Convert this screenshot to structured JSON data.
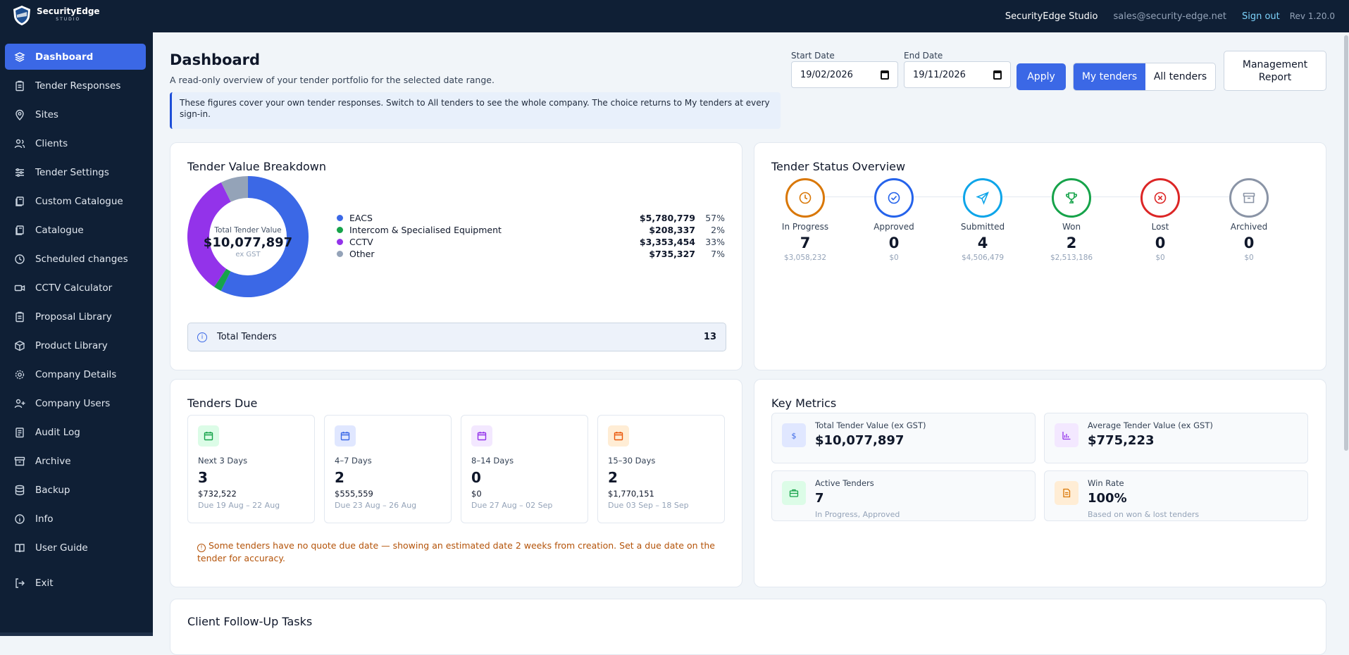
{
  "header": {
    "logo_name": "SecurityEdge",
    "logo_sub": "STUDIO",
    "studio": "SecurityEdge Studio",
    "email": "sales@security-edge.net",
    "signout": "Sign out",
    "rev": "Rev 1.20.0"
  },
  "sidebar": {
    "items": [
      {
        "label": "Dashboard",
        "icon": "layers-icon"
      },
      {
        "label": "Tender Responses",
        "icon": "clipboard-icon"
      },
      {
        "label": "Sites",
        "icon": "map-pin-icon"
      },
      {
        "label": "Clients",
        "icon": "users-icon"
      },
      {
        "label": "Tender Settings",
        "icon": "sliders-icon"
      },
      {
        "label": "Custom Catalogue",
        "icon": "book-copy-icon"
      },
      {
        "label": "Catalogue",
        "icon": "book-copy-icon"
      },
      {
        "label": "Scheduled changes",
        "icon": "clock-icon"
      },
      {
        "label": "CCTV Calculator",
        "icon": "video-icon"
      },
      {
        "label": "Proposal Library",
        "icon": "clipboard-icon"
      },
      {
        "label": "Product Library",
        "icon": "box-icon"
      },
      {
        "label": "Company Details",
        "icon": "gear-icon"
      },
      {
        "label": "Company Users",
        "icon": "user-plus-icon"
      },
      {
        "label": "Audit Log",
        "icon": "clipboard-list-icon"
      },
      {
        "label": "Archive",
        "icon": "archive-icon"
      },
      {
        "label": "Backup",
        "icon": "database-icon"
      },
      {
        "label": "Info",
        "icon": "info-icon"
      },
      {
        "label": "User Guide",
        "icon": "book-open-icon"
      },
      {
        "label": "Exit",
        "icon": "log-out-icon"
      }
    ]
  },
  "page": {
    "title": "Dashboard",
    "subtitle": "A read-only overview of your tender portfolio for the selected date range.",
    "banner": "These figures cover your own tender responses. Switch to All tenders to see the whole company. The choice returns to My tenders at every sign-in."
  },
  "filters": {
    "start_label": "Start Date",
    "start_value": "19/02/2026",
    "end_label": "End Date",
    "end_value": "19/11/2026",
    "apply": "Apply",
    "my_tenders": "My tenders",
    "all_tenders": "All tenders",
    "report": "Management Report"
  },
  "breakdown": {
    "title": "Tender Value Breakdown",
    "center_label": "Total Tender Value",
    "center_value": "$10,077,897",
    "center_note": "ex GST",
    "total_label": "Total Tenders",
    "total_value": "13"
  },
  "chart_data": {
    "type": "pie",
    "title": "Tender Value Breakdown",
    "categories": [
      "EACS",
      "Intercom & Specialised Equipment",
      "CCTV",
      "Other"
    ],
    "values": [
      5780779,
      208337,
      3353454,
      735327
    ],
    "value_labels": [
      "$5,780,779",
      "$208,337",
      "$3,353,454",
      "$735,327"
    ],
    "percent_labels": [
      "57%",
      "2%",
      "33%",
      "7%"
    ],
    "colors": [
      "#3b68e6",
      "#16a34a",
      "#9333ea",
      "#94a3b8"
    ]
  },
  "status": {
    "title": "Tender Status Overview",
    "items": [
      {
        "label": "In Progress",
        "count": "7",
        "amount": "$3,058,232",
        "color": "#d97706",
        "icon": "clock-icon"
      },
      {
        "label": "Approved",
        "count": "0",
        "amount": "$0",
        "color": "#2563eb",
        "icon": "check-circle-icon"
      },
      {
        "label": "Submitted",
        "count": "4",
        "amount": "$4,506,479",
        "color": "#0ea5e9",
        "icon": "send-icon"
      },
      {
        "label": "Won",
        "count": "2",
        "amount": "$2,513,186",
        "color": "#16a34a",
        "icon": "trophy-icon"
      },
      {
        "label": "Lost",
        "count": "0",
        "amount": "$0",
        "color": "#dc2626",
        "icon": "x-circle-icon"
      },
      {
        "label": "Archived",
        "count": "0",
        "amount": "$0",
        "color": "#8a94a6",
        "icon": "archive-icon"
      }
    ]
  },
  "due": {
    "title": "Tenders Due",
    "items": [
      {
        "label": "Next 3 Days",
        "count": "3",
        "amount": "$732,522",
        "range": "Due 19 Aug – 22 Aug",
        "color": "#16a34a",
        "bg": "#dcfce7"
      },
      {
        "label": "4–7 Days",
        "count": "2",
        "amount": "$555,559",
        "range": "Due 23 Aug – 26 Aug",
        "color": "#3b68e6",
        "bg": "#e0e7ff"
      },
      {
        "label": "8–14 Days",
        "count": "0",
        "amount": "$0",
        "range": "Due 27 Aug – 02 Sep",
        "color": "#9333ea",
        "bg": "#f3e8ff"
      },
      {
        "label": "15–30 Days",
        "count": "2",
        "amount": "$1,770,151",
        "range": "Due 03 Sep – 18 Sep",
        "color": "#ea580c",
        "bg": "#ffedd5"
      }
    ],
    "warning": "Some tenders have no quote due date — showing an estimated date 2 weeks from creation. Set a due date on the tender for accuracy."
  },
  "metrics": {
    "title": "Key Metrics",
    "items": [
      {
        "label": "Total Tender Value (ex GST)",
        "value": "$10,077,897",
        "sub": "",
        "icon": "dollar-icon",
        "color": "#3b68e6",
        "bg": "#e0e7ff"
      },
      {
        "label": "Average Tender Value (ex GST)",
        "value": "$775,223",
        "sub": "",
        "icon": "bar-chart-icon",
        "color": "#9333ea",
        "bg": "#f3e8ff"
      },
      {
        "label": "Active Tenders",
        "value": "7",
        "sub": "In Progress, Approved",
        "icon": "briefcase-icon",
        "color": "#16a34a",
        "bg": "#dcfce7"
      },
      {
        "label": "Win Rate",
        "value": "100%",
        "sub": "Based on won & lost tenders",
        "icon": "document-icon",
        "color": "#d97706",
        "bg": "#ffedd5"
      }
    ]
  },
  "followup": {
    "title": "Client Follow-Up Tasks"
  }
}
